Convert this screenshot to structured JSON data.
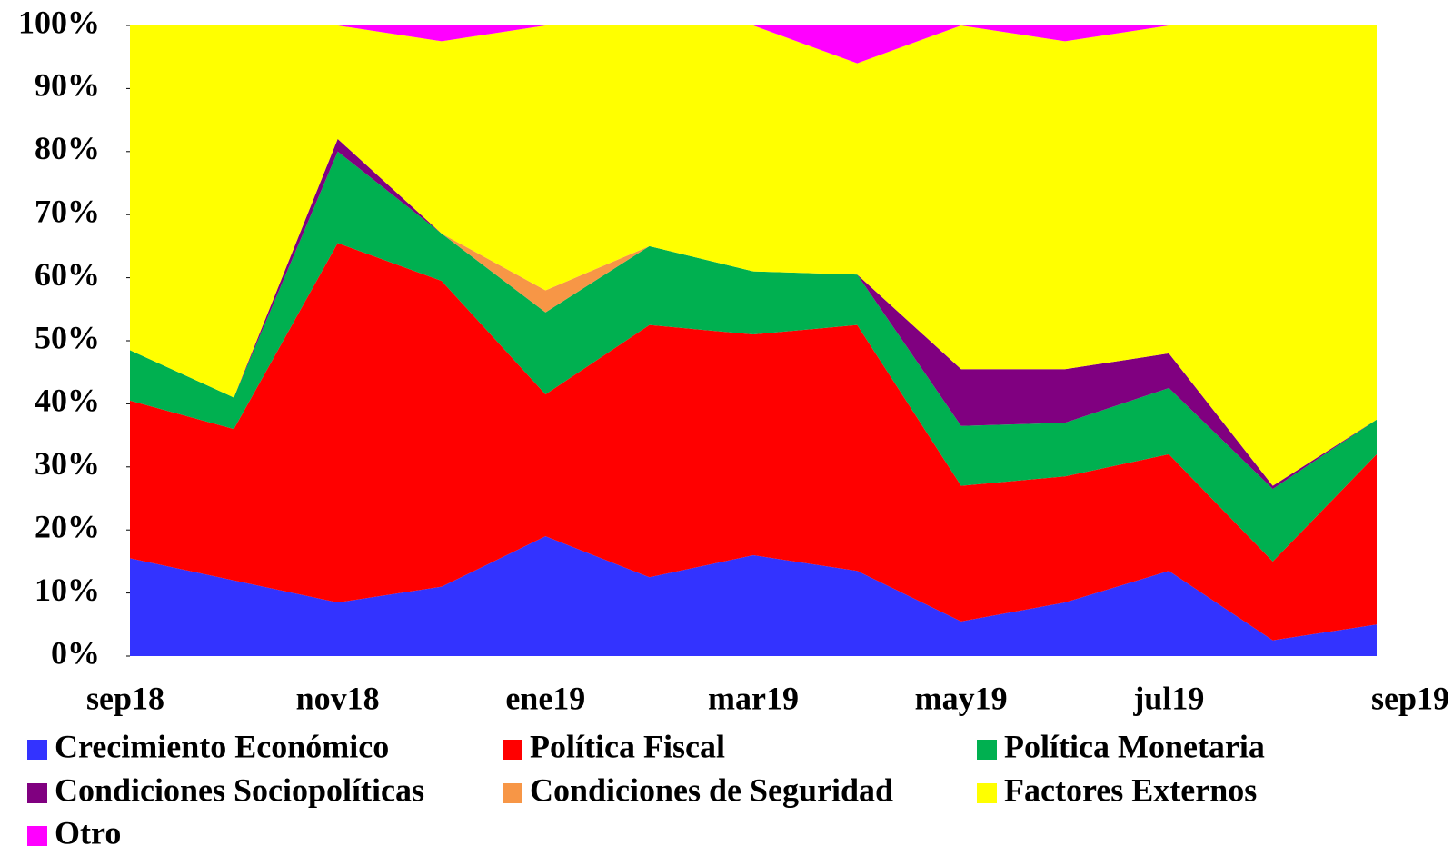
{
  "chart_data": {
    "type": "stacked_area",
    "categories": [
      "sep18",
      null,
      "nov18",
      null,
      "ene19",
      null,
      "mar19",
      null,
      "may19",
      null,
      "jul19",
      null,
      "sep19"
    ],
    "series": [
      {
        "name": "Crecimiento Económico",
        "color": "#3333ff",
        "values": [
          15.5,
          12,
          8.5,
          11,
          19,
          12.5,
          16,
          13.5,
          5.5,
          8.5,
          13.5,
          2.5,
          5
        ]
      },
      {
        "name": "Política Fiscal",
        "color": "#ff0000",
        "values": [
          25,
          24,
          57,
          48.5,
          22.5,
          40,
          35,
          39,
          21.5,
          20,
          18.5,
          12.5,
          27
        ]
      },
      {
        "name": "Política Monetaria",
        "color": "#00b050",
        "values": [
          8,
          5,
          14.5,
          7.5,
          13,
          12.5,
          10,
          8,
          9.5,
          8.5,
          10.5,
          11.5,
          5.5
        ]
      },
      {
        "name": "Condiciones Sociopolíticas",
        "color": "#800080",
        "values": [
          0,
          0,
          2,
          0,
          0,
          0,
          0,
          0,
          9,
          8.5,
          5.5,
          0.5,
          0
        ]
      },
      {
        "name": "Condiciones de Seguridad",
        "color": "#f79646",
        "values": [
          0,
          0,
          0,
          0,
          3.5,
          0,
          0,
          0,
          0,
          0,
          0,
          0,
          0
        ]
      },
      {
        "name": "Factores Externos",
        "color": "#ffff00",
        "values": [
          51.5,
          59,
          18,
          30.5,
          42,
          35,
          39,
          33.5,
          54.5,
          52,
          52,
          73,
          62.5
        ]
      },
      {
        "name": "Otro",
        "color": "#ff00ff",
        "values": [
          0,
          0,
          0,
          2.5,
          0,
          0,
          0,
          6,
          0,
          2.5,
          0,
          0,
          0
        ]
      }
    ],
    "ylim": [
      0,
      100
    ],
    "yticks": [
      {
        "value": 0,
        "label": "0%"
      },
      {
        "value": 10,
        "label": "10%"
      },
      {
        "value": 20,
        "label": "20%"
      },
      {
        "value": 30,
        "label": "30%"
      },
      {
        "value": 40,
        "label": "40%"
      },
      {
        "value": 50,
        "label": "50%"
      },
      {
        "value": 60,
        "label": "60%"
      },
      {
        "value": 70,
        "label": "70%"
      },
      {
        "value": 80,
        "label": "80%"
      },
      {
        "value": 90,
        "label": "90%"
      },
      {
        "value": 100,
        "label": "100%"
      }
    ],
    "grid": false
  }
}
